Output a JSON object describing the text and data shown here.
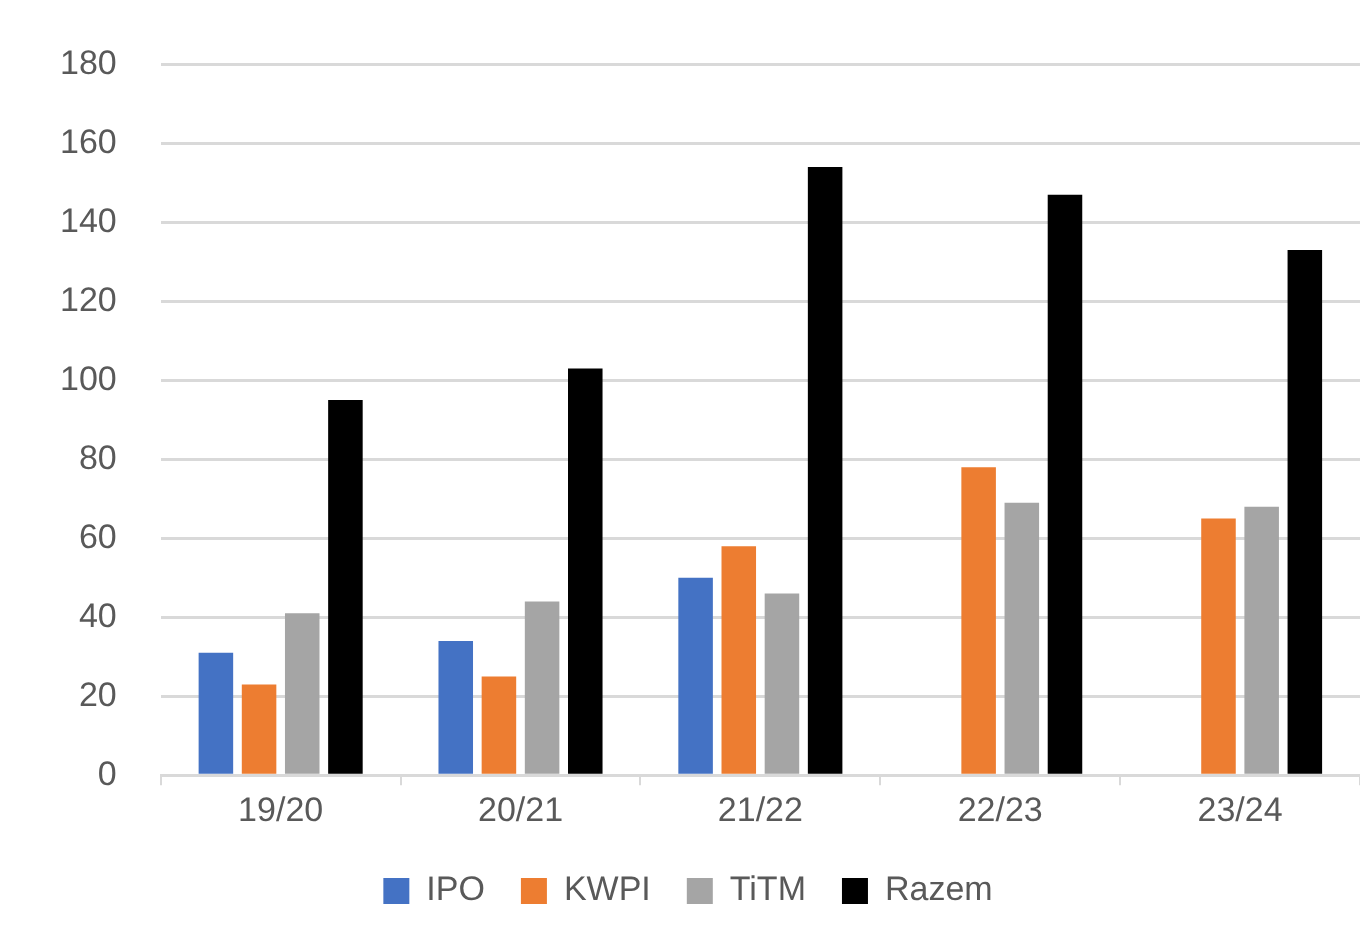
{
  "chart_data": {
    "type": "bar",
    "categories": [
      "19/20",
      "20/21",
      "21/22",
      "22/23",
      "23/24"
    ],
    "series": [
      {
        "name": "IPO",
        "color": "#4472c4",
        "values": [
          31,
          34,
          50,
          null,
          null
        ]
      },
      {
        "name": "KWPI",
        "color": "#ed7d31",
        "values": [
          23,
          25,
          58,
          78,
          65
        ]
      },
      {
        "name": "TiTM",
        "color": "#a5a5a5",
        "values": [
          41,
          44,
          46,
          69,
          68
        ]
      },
      {
        "name": "Razem",
        "color": "#000000",
        "values": [
          95,
          103,
          154,
          147,
          133
        ]
      }
    ],
    "ylim": [
      0,
      180
    ],
    "yticks": [
      0,
      20,
      40,
      60,
      80,
      100,
      120,
      140,
      160,
      180
    ],
    "grid": "y",
    "legend": "bottom"
  }
}
